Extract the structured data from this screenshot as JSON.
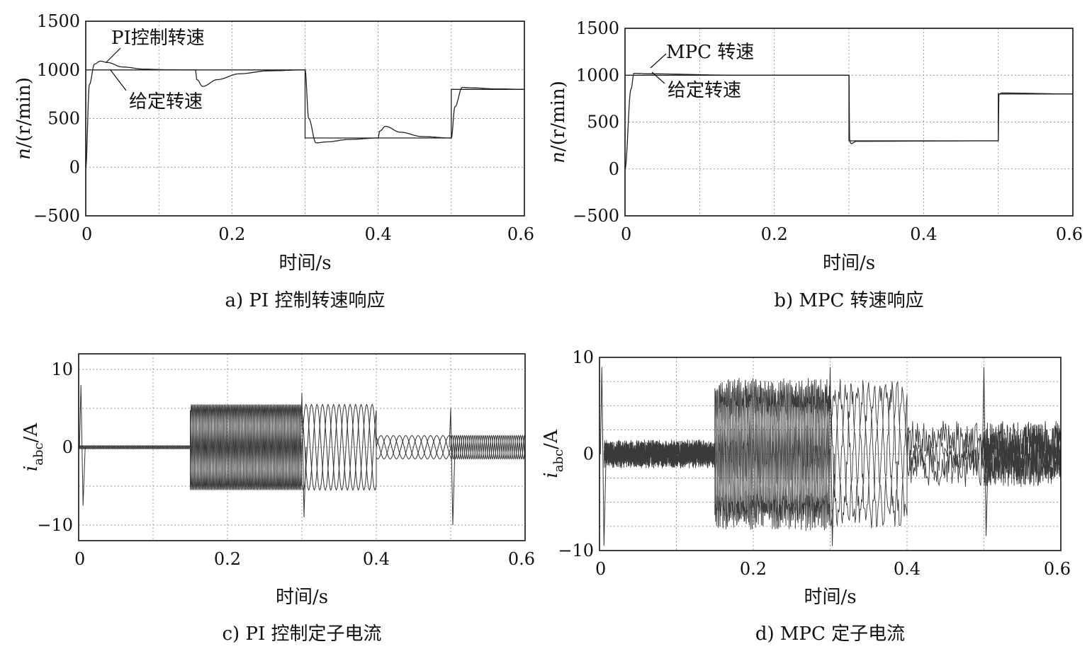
{
  "chart_data": [
    {
      "id": "a",
      "type": "line",
      "caption": "a) PI 控制转速响应",
      "xlabel": "时间/s",
      "ylabel": "n/(r/min)",
      "xlim": [
        0,
        0.6
      ],
      "ylim": [
        -500,
        1500
      ],
      "xticks": [
        "0",
        "0.2",
        "0.4",
        "0.6"
      ],
      "yticks": [
        "1500",
        "1000",
        "500",
        "0",
        "−500"
      ],
      "grid": true,
      "series": [
        {
          "name": "给定转速",
          "kind": "reference",
          "x": [
            0,
            0.3,
            0.3,
            0.5,
            0.5,
            0.6
          ],
          "y": [
            1000,
            1000,
            300,
            300,
            800,
            800
          ]
        },
        {
          "name": "PI控制转速",
          "kind": "response",
          "x": [
            0,
            0.005,
            0.012,
            0.02,
            0.03,
            0.05,
            0.08,
            0.11,
            0.15,
            0.152,
            0.16,
            0.18,
            0.21,
            0.25,
            0.3,
            0.305,
            0.315,
            0.33,
            0.36,
            0.4,
            0.402,
            0.41,
            0.43,
            0.46,
            0.5,
            0.505,
            0.515,
            0.53,
            0.56,
            0.6
          ],
          "y": [
            0,
            850,
            1060,
            1090,
            1075,
            1030,
            1008,
            1002,
            1000,
            900,
            830,
            900,
            960,
            990,
            1000,
            500,
            250,
            260,
            285,
            300,
            370,
            420,
            360,
            315,
            300,
            620,
            820,
            815,
            805,
            800
          ]
        }
      ],
      "annotations": [
        "PI控制转速",
        "给定转速"
      ]
    },
    {
      "id": "b",
      "type": "line",
      "caption": "b) MPC 转速响应",
      "xlabel": "时间/s",
      "ylabel": "n/(r/min)",
      "xlim": [
        0,
        0.6
      ],
      "ylim": [
        -500,
        1500
      ],
      "xticks": [
        "0",
        "0.2",
        "0.4",
        "0.6"
      ],
      "yticks": [
        "1500",
        "1000",
        "500",
        "0",
        "−500"
      ],
      "grid": true,
      "series": [
        {
          "name": "给定转速",
          "kind": "reference",
          "x": [
            0,
            0.3,
            0.3,
            0.5,
            0.5,
            0.6
          ],
          "y": [
            1000,
            1000,
            300,
            300,
            800,
            800
          ]
        },
        {
          "name": "MPC 转速",
          "kind": "response",
          "x": [
            0,
            0.008,
            0.012,
            0.03,
            0.15,
            0.3,
            0.301,
            0.303,
            0.31,
            0.5,
            0.501,
            0.505,
            0.6
          ],
          "y": [
            0,
            850,
            1020,
            1015,
            1000,
            1000,
            300,
            270,
            295,
            300,
            800,
            810,
            800
          ]
        }
      ],
      "annotations": [
        "MPC 转速",
        "给定转速"
      ]
    },
    {
      "id": "c",
      "type": "line",
      "caption": "c) PI 控制定子电流",
      "xlabel": "时间/s",
      "ylabel": "iabc/A",
      "ylabel_main": "i",
      "ylabel_sub": "abc",
      "ylabel_unit": "/A",
      "xlim": [
        0,
        0.6
      ],
      "ylim": [
        -12,
        12
      ],
      "xticks": [
        "0",
        "0.2",
        "0.4",
        "0.6"
      ],
      "yticks": [
        "10",
        "0",
        "−10"
      ],
      "grid": true,
      "segments": [
        {
          "t0": 0.0,
          "t1": 0.15,
          "amplitude": 0.2,
          "cycles": 30
        },
        {
          "t0": 0.15,
          "t1": 0.3,
          "amplitude": 5.5,
          "cycles": 25
        },
        {
          "t0": 0.3,
          "t1": 0.4,
          "amplitude": 5.5,
          "cycles": 4.5
        },
        {
          "t0": 0.4,
          "t1": 0.5,
          "amplitude": 1.5,
          "cycles": 4
        },
        {
          "t0": 0.5,
          "t1": 0.6,
          "amplitude": 1.5,
          "cycles": 12
        }
      ],
      "spikes": [
        {
          "t": 0.003,
          "values": [
            8,
            -7.5
          ]
        },
        {
          "t": 0.3,
          "values": [
            7,
            -9
          ]
        },
        {
          "t": 0.5,
          "values": [
            5,
            -10
          ]
        }
      ]
    },
    {
      "id": "d",
      "type": "line",
      "caption": "d) MPC 定子电流",
      "xlabel": "时间/s",
      "ylabel": "iabc/A",
      "ylabel_main": "i",
      "ylabel_sub": "abc",
      "ylabel_unit": "/A",
      "xlim": [
        0,
        0.6
      ],
      "ylim": [
        -10,
        10
      ],
      "xticks": [
        "0",
        "0.2",
        "0.4",
        "0.6"
      ],
      "yticks": [
        "10",
        "0",
        "−10"
      ],
      "grid": true,
      "segments": [
        {
          "t0": 0.006,
          "t1": 0.15,
          "amplitude": 0.3,
          "cycles": 30,
          "noise": 1.2
        },
        {
          "t0": 0.15,
          "t1": 0.3,
          "amplitude": 6.5,
          "cycles": 25,
          "noise": 1.5
        },
        {
          "t0": 0.3,
          "t1": 0.4,
          "amplitude": 6.5,
          "cycles": 4.5,
          "noise": 1.3
        },
        {
          "t0": 0.4,
          "t1": 0.5,
          "amplitude": 1.5,
          "cycles": 4,
          "noise": 2.0
        },
        {
          "t0": 0.5,
          "t1": 0.6,
          "amplitude": 1.5,
          "cycles": 12,
          "noise": 2.0
        }
      ],
      "spikes": [
        {
          "t": 0.003,
          "values": [
            9,
            -9.5
          ]
        },
        {
          "t": 0.3,
          "values": [
            9,
            -9.5
          ]
        },
        {
          "t": 0.5,
          "values": [
            9,
            -8.5
          ]
        }
      ]
    }
  ]
}
